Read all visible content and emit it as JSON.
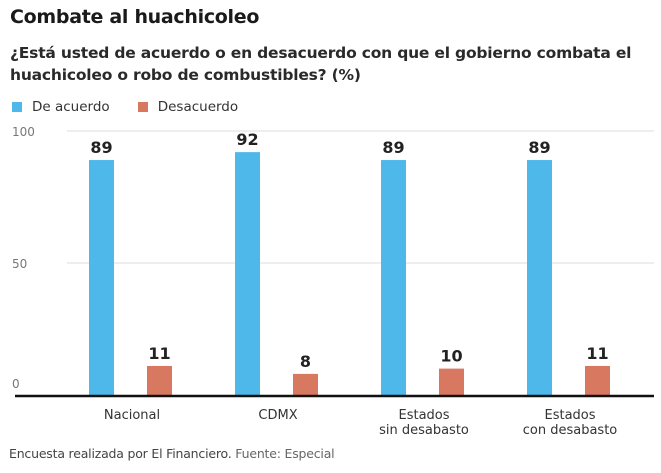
{
  "header": {
    "title": "Combate al huachicoleo",
    "subtitle": "¿Está usted de acuerdo o en desacuerdo con que el gobierno combata el huachicoleo o robo de combustibles? (%)"
  },
  "footer": {
    "note": "Encuesta realizada por El Financiero.",
    "source": "Fuente: Especial"
  },
  "colors": {
    "de_acuerdo": "#4fb8ea",
    "desacuerdo": "#d87860"
  },
  "chart_data": {
    "type": "bar",
    "title": "Combate al huachicoleo",
    "subtitle": "¿Está usted de acuerdo o en desacuerdo con que el gobierno combata el huachicoleo o robo de combustibles? (%)",
    "categories": [
      [
        "Nacional"
      ],
      [
        "CDMX"
      ],
      [
        "Estados",
        "sin desabasto"
      ],
      [
        "Estados",
        "con desabasto"
      ]
    ],
    "series": [
      {
        "name": "De acuerdo",
        "color": "#4fb8ea",
        "values": [
          89,
          92,
          89,
          89
        ]
      },
      {
        "name": "Desacuerdo",
        "color": "#d87860",
        "values": [
          11,
          8,
          10,
          11
        ]
      }
    ],
    "xlabel": "",
    "ylabel": "",
    "ylim": [
      0,
      100
    ],
    "yticks": [
      0,
      50,
      100
    ],
    "grid": true,
    "legend": "top-left",
    "data_labels": true
  }
}
